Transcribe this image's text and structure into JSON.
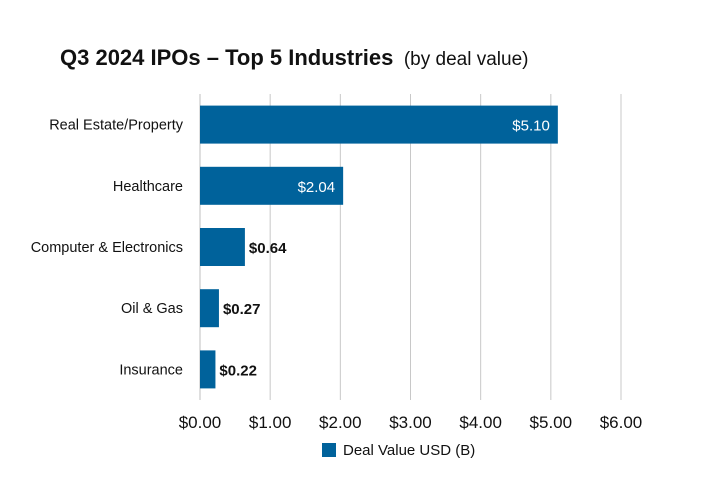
{
  "chart_data": {
    "type": "bar",
    "orientation": "horizontal",
    "title": "Q3 2024 IPOs – Top 5 Industries",
    "subtitle": "(by deal value)",
    "categories": [
      "Real Estate/Property",
      "Healthcare",
      "Computer & Electronics",
      "Oil & Gas",
      "Insurance"
    ],
    "series": [
      {
        "name": "Deal Value USD (B)",
        "values": [
          5.1,
          2.04,
          0.64,
          0.27,
          0.22
        ],
        "labels": [
          "$5.10",
          "$2.04",
          "$0.64",
          "$0.27",
          "$0.22"
        ]
      }
    ],
    "xlim": [
      0,
      6
    ],
    "x_ticks": [
      0,
      1,
      2,
      3,
      4,
      5,
      6
    ],
    "x_tick_labels": [
      "$0.00",
      "$1.00",
      "$2.00",
      "$3.00",
      "$4.00",
      "$5.00",
      "$6.00"
    ],
    "grid": true,
    "legend_position": "bottom",
    "bar_color": "#00629b"
  }
}
